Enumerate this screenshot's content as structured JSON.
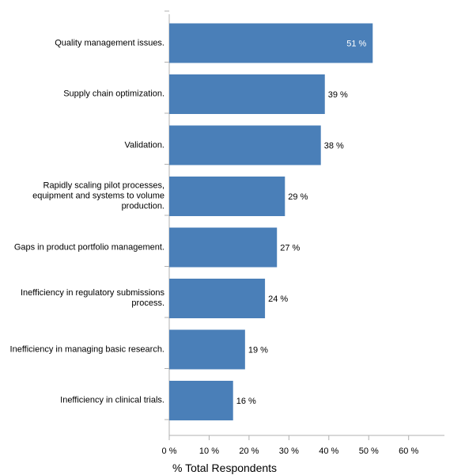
{
  "chart_data": {
    "type": "bar",
    "orientation": "horizontal",
    "categories": [
      "Quality management issues.",
      "Supply chain optimization.",
      "Validation.",
      "Rapidly scaling pilot processes,\nequipment and systems to volume\nproduction.",
      "Gaps in product portfolio management.",
      "Inefficiency in regulatory submissions\nprocess.",
      "Inefficiency in managing basic research.",
      "Inefficiency in clinical trials."
    ],
    "values": [
      51,
      39,
      38,
      29,
      27,
      24,
      19,
      16
    ],
    "data_labels": [
      "51 %",
      "39 %",
      "38 %",
      "29 %",
      "27 %",
      "24 %",
      "19 %",
      "16 %"
    ],
    "xlabel": "% Total Respondents",
    "xticks": [
      "0 %",
      "10 %",
      "20 %",
      "30 %",
      "40 %",
      "50 %",
      "60 %"
    ],
    "xlim": [
      0,
      69
    ],
    "bar_color": "#4a7fb8",
    "grid": false
  }
}
